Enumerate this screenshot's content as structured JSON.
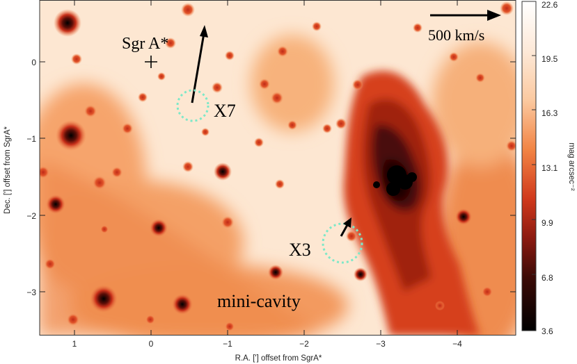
{
  "image": {
    "description_free": true,
    "colormap_colors": [
      "#000000",
      "#3a0a06",
      "#8b1a10",
      "#c8301a",
      "#e8602e",
      "#f59a62",
      "#fbc9a0",
      "#fde9d8",
      "#ffffff"
    ]
  },
  "axes": {
    "xlabel": "R.A. ['] offset from SgrA*",
    "ylabel": "Dec. ['] offset from SgrA*",
    "xticks": [
      "1",
      "0",
      "−1",
      "−2",
      "−3",
      "−4"
    ],
    "yticks": [
      "0",
      "−1",
      "−2",
      "−3"
    ]
  },
  "colorbar": {
    "label": "mag arcsec⁻²",
    "ticks": [
      "22.6",
      "19.5",
      "16.3",
      "13.1",
      "9.9",
      "6.8",
      "3.6"
    ]
  },
  "annotations": {
    "sgra": "Sgr A*",
    "x7": "X7",
    "x3": "X3",
    "scale": "500 km/s",
    "region": "mini-cavity"
  }
}
